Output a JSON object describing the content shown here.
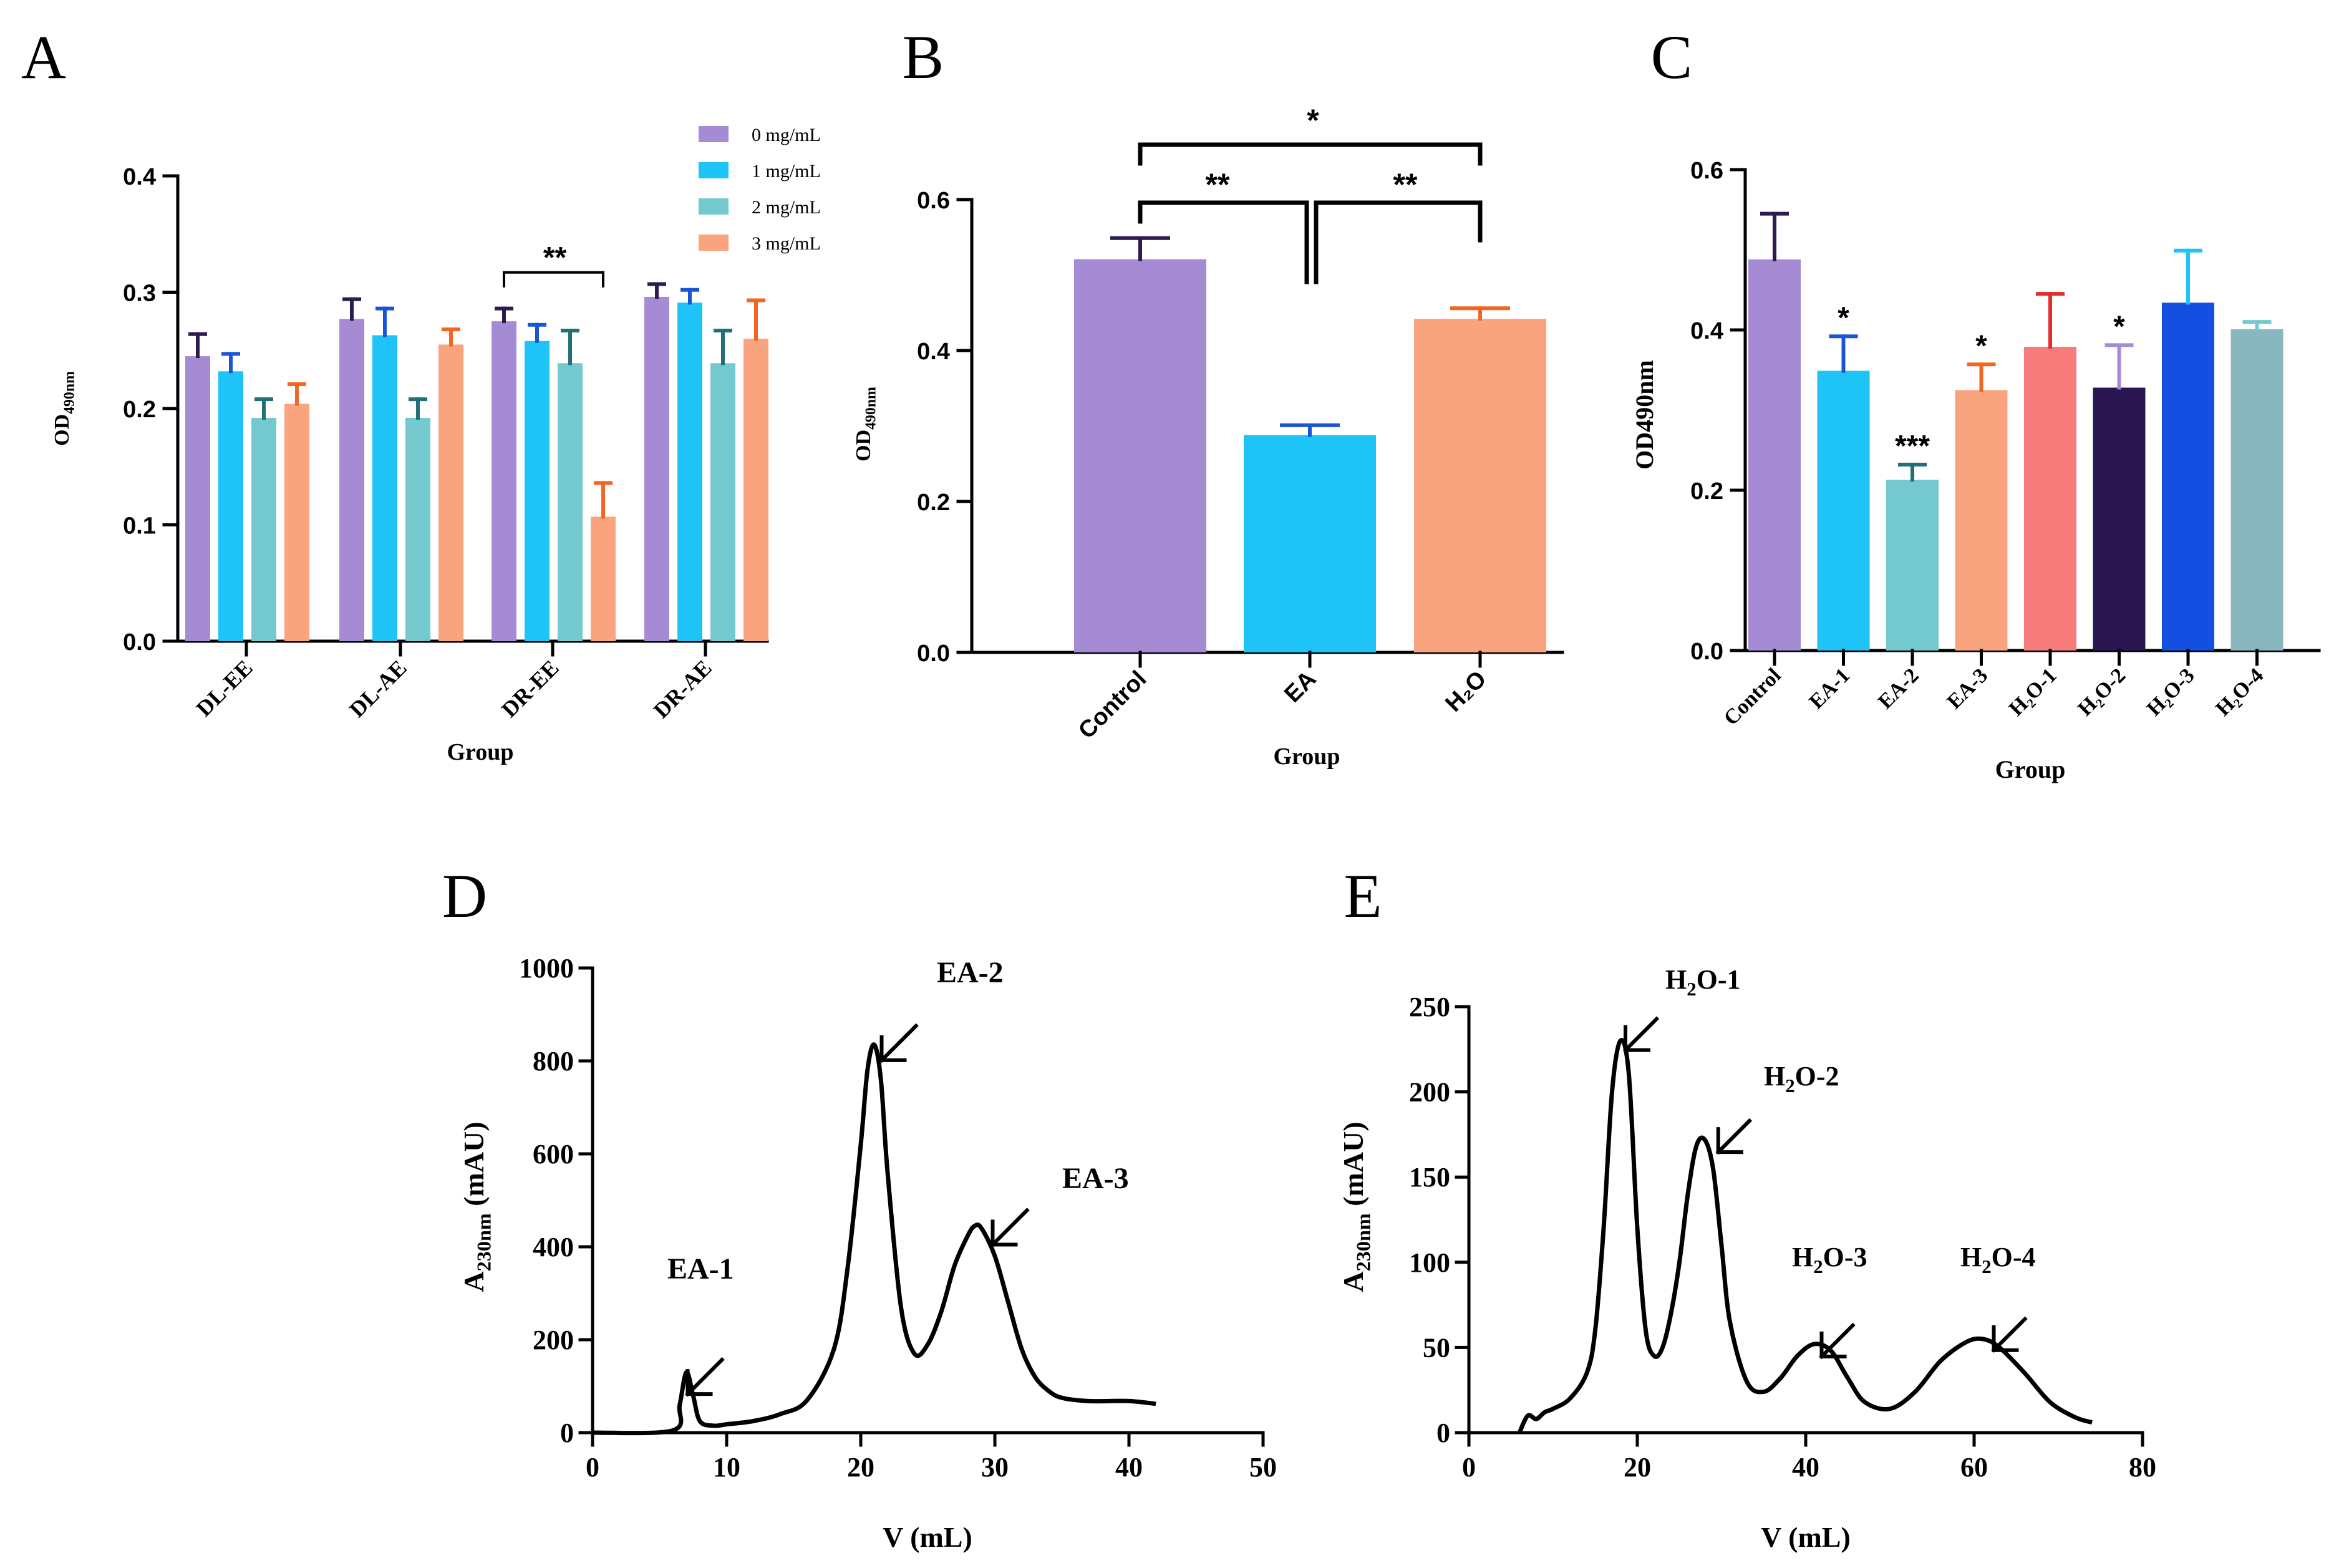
{
  "chart_data": [
    {
      "panel": "A",
      "type": "bar",
      "title": "",
      "xlabel": "Group",
      "ylabel": "OD",
      "ylabel_sub": "490nm",
      "ylim": [
        0,
        0.4
      ],
      "yticks": [
        0.0,
        0.1,
        0.2,
        0.3,
        0.4
      ],
      "ytick_labels": [
        "0.0",
        "0.1",
        "0.2",
        "0.3",
        "0.4"
      ],
      "categories": [
        "DL-EE",
        "DL-AE",
        "DR-EE",
        "DR-AE"
      ],
      "series": [
        {
          "name": "0 mg/mL",
          "color": "#A48BD4",
          "err_color": "#2E1A4F",
          "values": [
            0.245,
            0.277,
            0.275,
            0.296
          ],
          "errors": [
            0.019,
            0.017,
            0.011,
            0.011
          ]
        },
        {
          "name": "1 mg/mL",
          "color": "#1EC3F7",
          "err_color": "#1A55D8",
          "values": [
            0.232,
            0.263,
            0.258,
            0.291
          ],
          "errors": [
            0.015,
            0.023,
            0.014,
            0.011
          ]
        },
        {
          "name": "2 mg/mL",
          "color": "#74C9CF",
          "err_color": "#1F7078",
          "values": [
            0.192,
            0.192,
            0.239,
            0.239
          ],
          "errors": [
            0.016,
            0.016,
            0.028,
            0.028
          ]
        },
        {
          "name": "3 mg/mL",
          "color": "#F9A47F",
          "err_color": "#F26522",
          "values": [
            0.204,
            0.255,
            0.107,
            0.26
          ],
          "errors": [
            0.017,
            0.013,
            0.029,
            0.033
          ]
        }
      ],
      "annotations": [
        {
          "text": "**",
          "between": "DR-EE 0 mg/mL and DR-EE 3 mg/mL"
        }
      ]
    },
    {
      "panel": "B",
      "type": "bar",
      "xlabel": "Group",
      "ylabel": "OD",
      "ylabel_sub": "490nm",
      "ylim": [
        0,
        0.6
      ],
      "yticks": [
        0.0,
        0.2,
        0.4,
        0.6
      ],
      "ytick_labels": [
        "0.0",
        "0.2",
        "0.4",
        "0.6"
      ],
      "categories": [
        "Control",
        "EA",
        "H₂O"
      ],
      "values": [
        0.521,
        0.288,
        0.442
      ],
      "errors": [
        0.028,
        0.013,
        0.014
      ],
      "colors": [
        "#A48BD4",
        "#1EC3F7",
        "#F9A47F"
      ],
      "err_colors": [
        "#2E1A4F",
        "#1A55D8",
        "#F26522"
      ],
      "annotations": [
        {
          "text": "*",
          "between": [
            "Control",
            "H₂O"
          ]
        },
        {
          "text": "**",
          "between": [
            "Control",
            "EA"
          ]
        },
        {
          "text": "**",
          "between": [
            "EA",
            "H₂O"
          ]
        }
      ]
    },
    {
      "panel": "C",
      "type": "bar",
      "xlabel": "Group",
      "ylabel": "OD490nm",
      "ylim": [
        0,
        0.6
      ],
      "yticks": [
        0.0,
        0.2,
        0.4,
        0.6
      ],
      "ytick_labels": [
        "0.0",
        "0.2",
        "0.4",
        "0.6"
      ],
      "categories": [
        "Control",
        "EA-1",
        "EA-2",
        "EA-3",
        "H₂O-1",
        "H₂O-2",
        "H₂O-3",
        "H₂O-4"
      ],
      "values": [
        0.488,
        0.349,
        0.213,
        0.325,
        0.379,
        0.328,
        0.434,
        0.401
      ],
      "errors": [
        0.057,
        0.043,
        0.019,
        0.032,
        0.066,
        0.053,
        0.065,
        0.009
      ],
      "colors": [
        "#A48BD4",
        "#1EC3F7",
        "#74C9CF",
        "#F9A47F",
        "#F77B7B",
        "#2A1650",
        "#1350E2",
        "#88B8BE"
      ],
      "err_colors": [
        "#2E1A4F",
        "#1A55D8",
        "#1F7078",
        "#F26522",
        "#E52B2B",
        "#A48BD4",
        "#1EC3F7",
        "#74C9CF"
      ],
      "significance": [
        "",
        "*",
        "***",
        "*",
        "",
        "*",
        "",
        ""
      ]
    },
    {
      "panel": "D",
      "type": "line",
      "xlabel": "V (mL)",
      "ylabel": "A",
      "ylabel_sub": "230nm",
      "ylabel_unit": "(mAU)",
      "xlim": [
        0,
        50
      ],
      "ylim": [
        0,
        1000
      ],
      "xticks": [
        0,
        10,
        20,
        30,
        40,
        50
      ],
      "xtick_labels": [
        "0",
        "10",
        "20",
        "30",
        "40",
        "50"
      ],
      "yticks": [
        0,
        200,
        400,
        600,
        800,
        1000
      ],
      "ytick_labels": [
        "0",
        "200",
        "400",
        "600",
        "800",
        "1000"
      ],
      "x": [
        0,
        6,
        6.5,
        7,
        7.5,
        8,
        9,
        10,
        12,
        14,
        16,
        18,
        19,
        20,
        20.5,
        21,
        21.5,
        22,
        23,
        24,
        25,
        26,
        27,
        28,
        28.5,
        29,
        30,
        31,
        32,
        33,
        34,
        35,
        37,
        40,
        42
      ],
      "y": [
        0,
        5,
        60,
        130,
        80,
        25,
        15,
        18,
        25,
        40,
        70,
        180,
        350,
        620,
        780,
        835,
        760,
        560,
        270,
        170,
        190,
        260,
        360,
        425,
        445,
        440,
        380,
        280,
        180,
        120,
        90,
        75,
        68,
        68,
        62
      ],
      "annotations": [
        {
          "text": "EA-1",
          "x": 7,
          "y": 130
        },
        {
          "text": "EA-2",
          "x": 21,
          "y": 835
        },
        {
          "text": "EA-3",
          "x": 29,
          "y": 445
        }
      ]
    },
    {
      "panel": "E",
      "type": "line",
      "xlabel": "V (mL)",
      "ylabel": "A",
      "ylabel_sub": "230nm",
      "ylabel_unit": "(mAU)",
      "xlim": [
        0,
        80
      ],
      "ylim": [
        0,
        250
      ],
      "xticks": [
        0,
        20,
        40,
        60,
        80
      ],
      "xtick_labels": [
        "0",
        "20",
        "40",
        "60",
        "80"
      ],
      "yticks": [
        0,
        50,
        100,
        150,
        200,
        250
      ],
      "ytick_labels": [
        "0",
        "50",
        "100",
        "150",
        "200",
        "250"
      ],
      "x": [
        6,
        7,
        8,
        9,
        10,
        12,
        14,
        15,
        16,
        17,
        18,
        19,
        20,
        21,
        22,
        23,
        24,
        25,
        26,
        27,
        28,
        29,
        30,
        31,
        33,
        35,
        37,
        39,
        41,
        43,
        45,
        47,
        50,
        53,
        56,
        59,
        61,
        63,
        66,
        69,
        72,
        74
      ],
      "y": [
        0,
        10,
        8,
        12,
        14,
        20,
        35,
        60,
        120,
        200,
        230,
        210,
        120,
        60,
        45,
        50,
        70,
        100,
        140,
        168,
        172,
        155,
        110,
        65,
        30,
        24,
        32,
        45,
        52,
        48,
        32,
        18,
        14,
        24,
        42,
        53,
        55,
        50,
        35,
        18,
        9,
        6
      ],
      "annotations": [
        {
          "text": "H₂O-1",
          "x": 18,
          "y": 230
        },
        {
          "text": "H₂O-2",
          "x": 28.5,
          "y": 172
        },
        {
          "text": "H₂O-3",
          "x": 41,
          "y": 52
        },
        {
          "text": "H₂O-4",
          "x": 61,
          "y": 55
        }
      ]
    }
  ],
  "panel_letters": [
    "A",
    "B",
    "C",
    "D",
    "E"
  ]
}
